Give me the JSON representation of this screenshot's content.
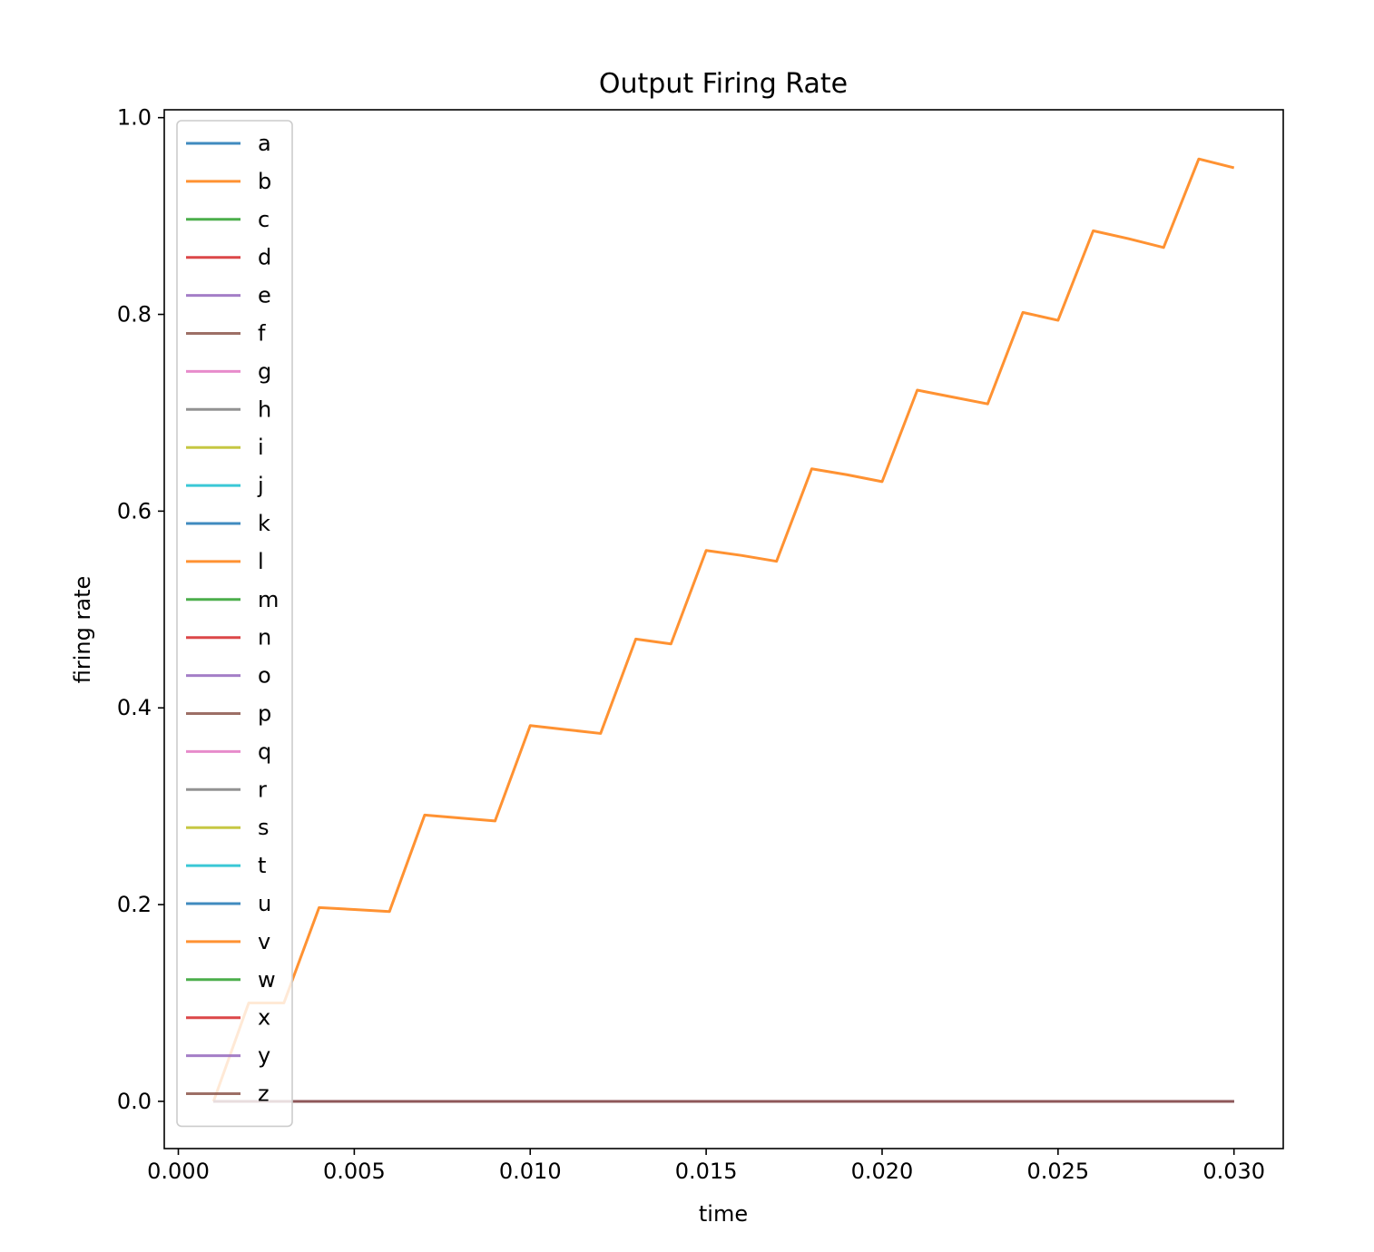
{
  "chart_data": {
    "type": "line",
    "title": "Output Firing Rate",
    "xlabel": "time",
    "ylabel": "firing rate",
    "xlim": [
      -0.0004,
      0.0314
    ],
    "ylim": [
      -0.048,
      1.008
    ],
    "x_ticks": [
      0.0,
      0.005,
      0.01,
      0.015,
      0.02,
      0.025,
      0.03
    ],
    "x_tick_labels": [
      "0.000",
      "0.005",
      "0.010",
      "0.015",
      "0.020",
      "0.025",
      "0.030"
    ],
    "y_ticks": [
      0.0,
      0.2,
      0.4,
      0.6,
      0.8,
      1.0
    ],
    "y_tick_labels": [
      "0.0",
      "0.2",
      "0.4",
      "0.6",
      "0.8",
      "1.0"
    ],
    "grid": false,
    "legend_position": "upper-left",
    "x": [
      0.001,
      0.002,
      0.003,
      0.004,
      0.005,
      0.006,
      0.007,
      0.008,
      0.009,
      0.01,
      0.011,
      0.012,
      0.013,
      0.014,
      0.015,
      0.016,
      0.017,
      0.018,
      0.019,
      0.02,
      0.021,
      0.022,
      0.023,
      0.024,
      0.025,
      0.026,
      0.027,
      0.028,
      0.029,
      0.03
    ],
    "series": [
      {
        "name": "a",
        "color": "#1f77b4",
        "values": [
          0,
          0,
          0,
          0,
          0,
          0,
          0,
          0,
          0,
          0,
          0,
          0,
          0,
          0,
          0,
          0,
          0,
          0,
          0,
          0,
          0,
          0,
          0,
          0,
          0,
          0,
          0,
          0,
          0,
          0
        ]
      },
      {
        "name": "b",
        "color": "#ff7f0e",
        "values": [
          0,
          0,
          0,
          0,
          0,
          0,
          0,
          0,
          0,
          0,
          0,
          0,
          0,
          0,
          0,
          0,
          0,
          0,
          0,
          0,
          0,
          0,
          0,
          0,
          0,
          0,
          0,
          0,
          0,
          0
        ]
      },
      {
        "name": "c",
        "color": "#2ca02c",
        "values": [
          0,
          0,
          0,
          0,
          0,
          0,
          0,
          0,
          0,
          0,
          0,
          0,
          0,
          0,
          0,
          0,
          0,
          0,
          0,
          0,
          0,
          0,
          0,
          0,
          0,
          0,
          0,
          0,
          0,
          0
        ]
      },
      {
        "name": "d",
        "color": "#d62728",
        "values": [
          0,
          0,
          0,
          0,
          0,
          0,
          0,
          0,
          0,
          0,
          0,
          0,
          0,
          0,
          0,
          0,
          0,
          0,
          0,
          0,
          0,
          0,
          0,
          0,
          0,
          0,
          0,
          0,
          0,
          0
        ]
      },
      {
        "name": "e",
        "color": "#9467bd",
        "values": [
          0,
          0,
          0,
          0,
          0,
          0,
          0,
          0,
          0,
          0,
          0,
          0,
          0,
          0,
          0,
          0,
          0,
          0,
          0,
          0,
          0,
          0,
          0,
          0,
          0,
          0,
          0,
          0,
          0,
          0
        ]
      },
      {
        "name": "f",
        "color": "#8c564b",
        "values": [
          0,
          0,
          0,
          0,
          0,
          0,
          0,
          0,
          0,
          0,
          0,
          0,
          0,
          0,
          0,
          0,
          0,
          0,
          0,
          0,
          0,
          0,
          0,
          0,
          0,
          0,
          0,
          0,
          0,
          0
        ]
      },
      {
        "name": "g",
        "color": "#e377c2",
        "values": [
          0,
          0,
          0,
          0,
          0,
          0,
          0,
          0,
          0,
          0,
          0,
          0,
          0,
          0,
          0,
          0,
          0,
          0,
          0,
          0,
          0,
          0,
          0,
          0,
          0,
          0,
          0,
          0,
          0,
          0
        ]
      },
      {
        "name": "h",
        "color": "#7f7f7f",
        "values": [
          0,
          0,
          0,
          0,
          0,
          0,
          0,
          0,
          0,
          0,
          0,
          0,
          0,
          0,
          0,
          0,
          0,
          0,
          0,
          0,
          0,
          0,
          0,
          0,
          0,
          0,
          0,
          0,
          0,
          0
        ]
      },
      {
        "name": "i",
        "color": "#bcbd22",
        "values": [
          0,
          0,
          0,
          0,
          0,
          0,
          0,
          0,
          0,
          0,
          0,
          0,
          0,
          0,
          0,
          0,
          0,
          0,
          0,
          0,
          0,
          0,
          0,
          0,
          0,
          0,
          0,
          0,
          0,
          0
        ]
      },
      {
        "name": "j",
        "color": "#17becf",
        "values": [
          0,
          0,
          0,
          0,
          0,
          0,
          0,
          0,
          0,
          0,
          0,
          0,
          0,
          0,
          0,
          0,
          0,
          0,
          0,
          0,
          0,
          0,
          0,
          0,
          0,
          0,
          0,
          0,
          0,
          0
        ]
      },
      {
        "name": "k",
        "color": "#1f77b4",
        "values": [
          0,
          0,
          0,
          0,
          0,
          0,
          0,
          0,
          0,
          0,
          0,
          0,
          0,
          0,
          0,
          0,
          0,
          0,
          0,
          0,
          0,
          0,
          0,
          0,
          0,
          0,
          0,
          0,
          0,
          0
        ]
      },
      {
        "name": "l",
        "color": "#ff7f0e",
        "values": [
          0,
          0,
          0,
          0,
          0,
          0,
          0,
          0,
          0,
          0,
          0,
          0,
          0,
          0,
          0,
          0,
          0,
          0,
          0,
          0,
          0,
          0,
          0,
          0,
          0,
          0,
          0,
          0,
          0,
          0
        ]
      },
      {
        "name": "m",
        "color": "#2ca02c",
        "values": [
          0,
          0,
          0,
          0,
          0,
          0,
          0,
          0,
          0,
          0,
          0,
          0,
          0,
          0,
          0,
          0,
          0,
          0,
          0,
          0,
          0,
          0,
          0,
          0,
          0,
          0,
          0,
          0,
          0,
          0
        ]
      },
      {
        "name": "n",
        "color": "#d62728",
        "values": [
          0,
          0,
          0,
          0,
          0,
          0,
          0,
          0,
          0,
          0,
          0,
          0,
          0,
          0,
          0,
          0,
          0,
          0,
          0,
          0,
          0,
          0,
          0,
          0,
          0,
          0,
          0,
          0,
          0,
          0
        ]
      },
      {
        "name": "o",
        "color": "#9467bd",
        "values": [
          0,
          0,
          0,
          0,
          0,
          0,
          0,
          0,
          0,
          0,
          0,
          0,
          0,
          0,
          0,
          0,
          0,
          0,
          0,
          0,
          0,
          0,
          0,
          0,
          0,
          0,
          0,
          0,
          0,
          0
        ]
      },
      {
        "name": "p",
        "color": "#8c564b",
        "values": [
          0,
          0,
          0,
          0,
          0,
          0,
          0,
          0,
          0,
          0,
          0,
          0,
          0,
          0,
          0,
          0,
          0,
          0,
          0,
          0,
          0,
          0,
          0,
          0,
          0,
          0,
          0,
          0,
          0,
          0
        ]
      },
      {
        "name": "q",
        "color": "#e377c2",
        "values": [
          0,
          0,
          0,
          0,
          0,
          0,
          0,
          0,
          0,
          0,
          0,
          0,
          0,
          0,
          0,
          0,
          0,
          0,
          0,
          0,
          0,
          0,
          0,
          0,
          0,
          0,
          0,
          0,
          0,
          0
        ]
      },
      {
        "name": "r",
        "color": "#7f7f7f",
        "values": [
          0,
          0,
          0,
          0,
          0,
          0,
          0,
          0,
          0,
          0,
          0,
          0,
          0,
          0,
          0,
          0,
          0,
          0,
          0,
          0,
          0,
          0,
          0,
          0,
          0,
          0,
          0,
          0,
          0,
          0
        ]
      },
      {
        "name": "s",
        "color": "#bcbd22",
        "values": [
          0,
          0,
          0,
          0,
          0,
          0,
          0,
          0,
          0,
          0,
          0,
          0,
          0,
          0,
          0,
          0,
          0,
          0,
          0,
          0,
          0,
          0,
          0,
          0,
          0,
          0,
          0,
          0,
          0,
          0
        ]
      },
      {
        "name": "t",
        "color": "#17becf",
        "values": [
          0,
          0,
          0,
          0,
          0,
          0,
          0,
          0,
          0,
          0,
          0,
          0,
          0,
          0,
          0,
          0,
          0,
          0,
          0,
          0,
          0,
          0,
          0,
          0,
          0,
          0,
          0,
          0,
          0,
          0
        ]
      },
      {
        "name": "u",
        "color": "#1f77b4",
        "values": [
          0,
          0,
          0,
          0,
          0,
          0,
          0,
          0,
          0,
          0,
          0,
          0,
          0,
          0,
          0,
          0,
          0,
          0,
          0,
          0,
          0,
          0,
          0,
          0,
          0,
          0,
          0,
          0,
          0,
          0
        ]
      },
      {
        "name": "v",
        "color": "#ff7f0e",
        "values": [
          0.0,
          0.1,
          0.1,
          0.197,
          0.195,
          0.193,
          0.291,
          0.288,
          0.285,
          0.382,
          0.378,
          0.374,
          0.47,
          0.465,
          0.56,
          0.555,
          0.549,
          0.643,
          0.637,
          0.63,
          0.723,
          0.716,
          0.709,
          0.802,
          0.794,
          0.885,
          0.877,
          0.868,
          0.958,
          0.949
        ]
      },
      {
        "name": "w",
        "color": "#2ca02c",
        "values": [
          0,
          0,
          0,
          0,
          0,
          0,
          0,
          0,
          0,
          0,
          0,
          0,
          0,
          0,
          0,
          0,
          0,
          0,
          0,
          0,
          0,
          0,
          0,
          0,
          0,
          0,
          0,
          0,
          0,
          0
        ]
      },
      {
        "name": "x",
        "color": "#d62728",
        "values": [
          0,
          0,
          0,
          0,
          0,
          0,
          0,
          0,
          0,
          0,
          0,
          0,
          0,
          0,
          0,
          0,
          0,
          0,
          0,
          0,
          0,
          0,
          0,
          0,
          0,
          0,
          0,
          0,
          0,
          0
        ]
      },
      {
        "name": "y",
        "color": "#9467bd",
        "values": [
          0,
          0,
          0,
          0,
          0,
          0,
          0,
          0,
          0,
          0,
          0,
          0,
          0,
          0,
          0,
          0,
          0,
          0,
          0,
          0,
          0,
          0,
          0,
          0,
          0,
          0,
          0,
          0,
          0,
          0
        ]
      },
      {
        "name": "z",
        "color": "#8c564b",
        "values": [
          0,
          0,
          0,
          0,
          0,
          0,
          0,
          0,
          0,
          0,
          0,
          0,
          0,
          0,
          0,
          0,
          0,
          0,
          0,
          0,
          0,
          0,
          0,
          0,
          0,
          0,
          0,
          0,
          0,
          0
        ]
      }
    ]
  }
}
